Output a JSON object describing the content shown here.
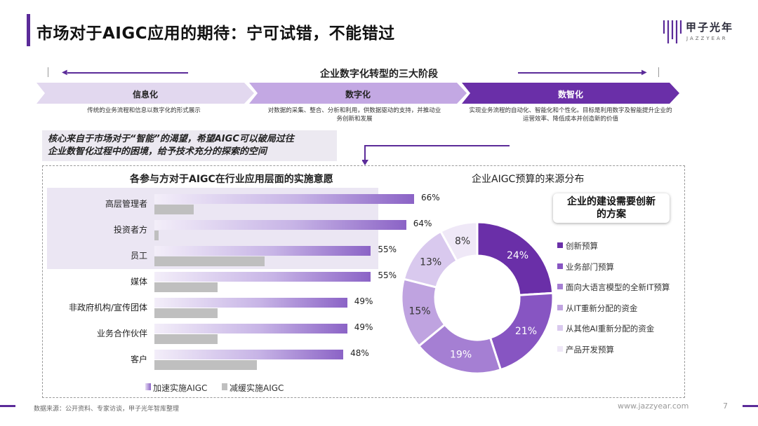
{
  "title": "市场对于AIGC应用的期待：宁可试错，不能错过",
  "logo": {
    "cn": "甲子光年",
    "en": "JAZZYEAR"
  },
  "stages": {
    "title": "企业数字化转型的三大阶段",
    "items": [
      {
        "label": "信息化",
        "desc": "传统的业务流程和信息以数字化的形式展示"
      },
      {
        "label": "数字化",
        "desc": "对数据的采集、整合、分析和利用，供数据驱动的支持，并推动业务创新和发展"
      },
      {
        "label": "数智化",
        "desc": "实现业务流程的自动化、智能化和个性化。目标是利用数字及智能提升企业的运营效率、降低成本并创造新的价值"
      }
    ]
  },
  "callout": {
    "line1": "核心来自于市场对于“智能”的渴望，希望AIGC可以破局过往",
    "line2": "企业数智化过程中的困境，给予技术充分的探索的空间"
  },
  "innovation_note": {
    "line1": "企业的建设需要创新",
    "line2": "的方案"
  },
  "footer": {
    "source": "数据来源：公开资料、专家访谈，甲子光年智库整理",
    "url": "www.jazzyear.com",
    "page": "7"
  },
  "colors": {
    "accent": "#5b2b99",
    "donut": [
      "#6a2fa8",
      "#8755c2",
      "#a57fd3",
      "#bfa3e0",
      "#d9c9ee",
      "#efe8f7"
    ],
    "slow_bar": "#bfbfbf"
  },
  "chart_data": [
    {
      "type": "bar",
      "title": "各参与方对于AIGC在行业应用层面的实施意愿",
      "categories": [
        "高层管理者",
        "投资者方",
        "员工",
        "媒体",
        "非政府机构/宣传团体",
        "业务合作伙伴",
        "客户"
      ],
      "series": [
        {
          "name": "加速实施AIGC",
          "values": [
            66,
            64,
            55,
            55,
            49,
            49,
            48
          ],
          "labels": [
            "66%",
            "64%",
            "55%",
            "55%",
            "49%",
            "49%",
            "48%"
          ]
        },
        {
          "name": "减缓实施AIGC",
          "values": [
            10,
            1,
            28,
            16,
            16,
            16,
            26
          ]
        }
      ],
      "highlighted_categories": [
        "高层管理者",
        "投资者方",
        "员工"
      ]
    },
    {
      "type": "pie",
      "title": "企业AIGC预算的来源分布",
      "donut": true,
      "labels": [
        "创新预算",
        "业务部门预算",
        "面向大语言模型的全新IT预算",
        "从IT重新分配的资金",
        "从其他AI重新分配的资金",
        "产品开发预算"
      ],
      "values": [
        24,
        21,
        19,
        15,
        13,
        8
      ],
      "value_labels": [
        "24%",
        "21%",
        "19%",
        "15%",
        "13%",
        "8%"
      ],
      "legend_position": "right"
    }
  ]
}
